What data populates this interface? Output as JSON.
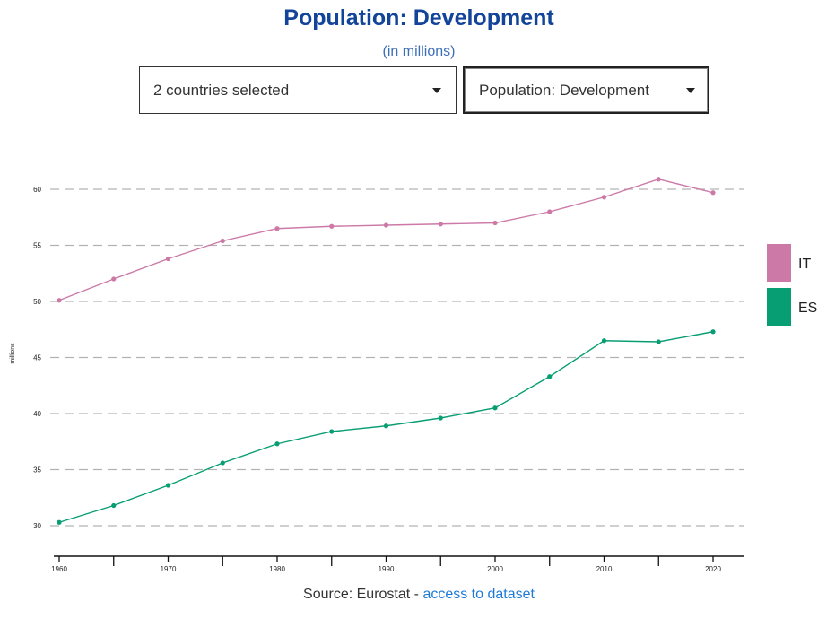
{
  "header": {
    "title": "Population: Development",
    "subtitle": "(in millions)"
  },
  "controls": {
    "countries_label": "2 countries selected",
    "indicator_label": "Population: Development"
  },
  "footer": {
    "source_prefix": "Source: Eurostat - ",
    "source_link": "access to dataset"
  },
  "chart_data": {
    "type": "line",
    "title": "Population: Development",
    "subtitle": "(in millions)",
    "ylabel": "millions",
    "xlabel": "",
    "x": [
      1960,
      1965,
      1970,
      1975,
      1980,
      1985,
      1990,
      1995,
      2000,
      2005,
      2010,
      2015,
      2020
    ],
    "x_ticks": [
      1960,
      1970,
      1980,
      1990,
      2000,
      2010,
      2020
    ],
    "xlim": [
      1960,
      2022
    ],
    "ylim": [
      29.3,
      63.0
    ],
    "y_ticks": [
      30,
      35,
      40,
      45,
      50,
      55,
      60
    ],
    "grid": "horizontal-dashed",
    "legend_position": "right",
    "series": [
      {
        "name": "IT",
        "color": "#cc79a7",
        "values": [
          50.1,
          52.0,
          53.8,
          55.4,
          56.5,
          56.7,
          56.8,
          56.9,
          57.0,
          58.0,
          59.3,
          60.9,
          59.7
        ]
      },
      {
        "name": "ES",
        "color": "#089e73",
        "values": [
          30.3,
          31.8,
          33.6,
          35.6,
          37.3,
          38.4,
          38.9,
          39.6,
          40.5,
          43.3,
          46.5,
          46.4,
          47.3
        ]
      }
    ]
  }
}
